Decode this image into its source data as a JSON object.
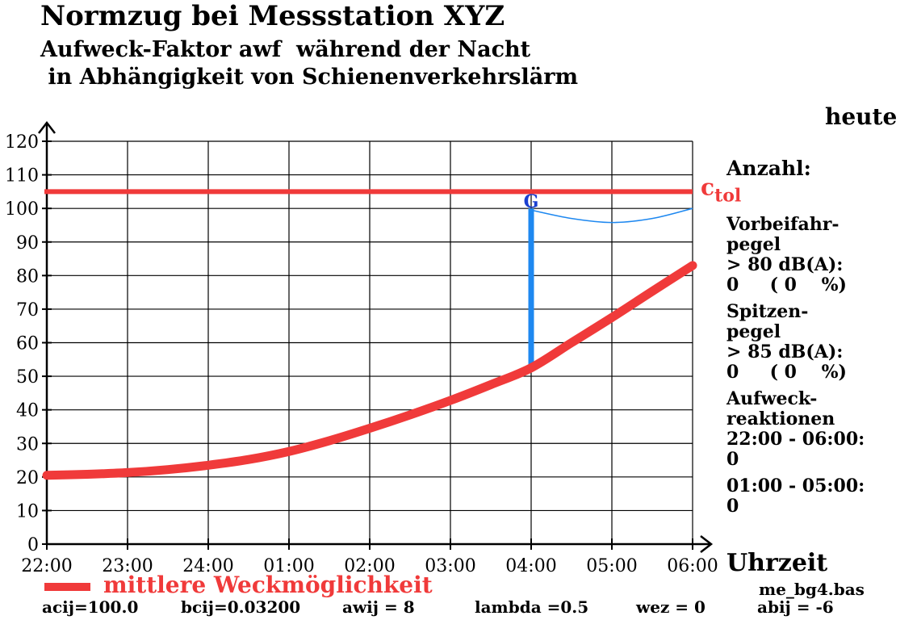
{
  "header": {
    "title": "Normzug bei Messstation XYZ",
    "subtitle_line1": "Aufweck-Faktor awf  während der Nacht",
    "subtitle_line2": " in Abhängigkeit von Schienenverkehrslärm"
  },
  "side": {
    "heute": "heute",
    "anzahl": "Anzahl:",
    "lines": [
      "Vorbeifahr-",
      "pegel",
      "> 80 dB(A):",
      "0     ( 0    %)",
      "",
      "Spitzen-",
      "pegel",
      "> 85 dB(A):",
      "0     ( 0    %)",
      "",
      "Aufweck-",
      "reaktionen",
      "22:00 - 06:00:",
      "0",
      "",
      "01:00 - 05:00:",
      "0"
    ]
  },
  "footer": {
    "xunit": "Uhrzeit",
    "legend_label": "mittlere Weckmöglichkeit",
    "script_name": "me_bg4.bas",
    "params": [
      "acij=100.0",
      "bcij=0.03200",
      "awij = 8",
      "lambda =0.5",
      "wez = 0",
      "abij = -6"
    ]
  },
  "chart_data": {
    "type": "line",
    "title": "Normzug bei Messstation XYZ",
    "xlabel": "Uhrzeit",
    "ylabel": "",
    "categories": [
      "22:00",
      "23:00",
      "24:00",
      "01:00",
      "02:00",
      "03:00",
      "04:00",
      "05:00",
      "06:00"
    ],
    "yticks": [
      0,
      10,
      20,
      30,
      40,
      50,
      60,
      70,
      80,
      90,
      100,
      110,
      120
    ],
    "ylim": [
      0,
      120
    ],
    "grid": true,
    "series": [
      {
        "name": "mittlere Weckmöglichkeit",
        "color": "#f03a3a",
        "x": [
          0,
          0.5,
          1,
          1.5,
          2,
          2.5,
          3,
          3.5,
          4,
          4.5,
          5,
          5.5,
          6,
          6.5,
          7,
          7.5,
          8
        ],
        "values": [
          20.5,
          20.8,
          21.3,
          22.2,
          23.5,
          25.2,
          27.6,
          30.8,
          34.5,
          38.5,
          42.8,
          47.5,
          52.5,
          60,
          67.5,
          75.3,
          83
        ]
      }
    ],
    "threshold": {
      "label": "c",
      "sub": "tol",
      "value": 105,
      "color": "#f03a3a"
    },
    "marker": {
      "label": "G",
      "x": 6,
      "y_from": 53,
      "y_to": 100,
      "color": "#1e88f0"
    },
    "thin_curve": {
      "color": "#1e88f0",
      "x": [
        6,
        6.5,
        7,
        7.5,
        8
      ],
      "values": [
        99.5,
        97,
        95.8,
        97,
        100
      ]
    }
  }
}
